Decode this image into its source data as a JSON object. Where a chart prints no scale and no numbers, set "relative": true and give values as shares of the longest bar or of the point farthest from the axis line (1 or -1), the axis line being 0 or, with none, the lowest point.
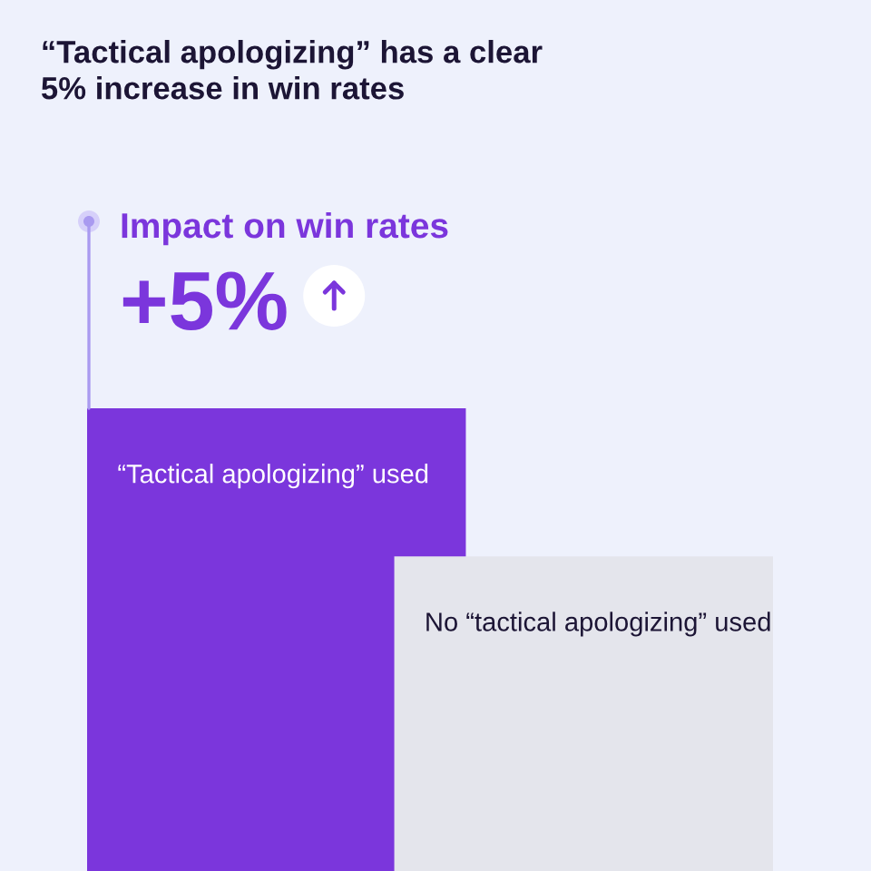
{
  "chart_data": {
    "type": "bar",
    "title": "“Tactical apologizing” has a clear 5% increase in win rates",
    "categories": [
      null
    ],
    "series": [
      {
        "name": "“Tactical apologizing” used",
        "color": "#7b36dc",
        "values": [
          1
        ]
      },
      {
        "name": "No “tactical apologizing” used",
        "color": "#e4e5ec",
        "values": [
          0.68
        ]
      }
    ],
    "relative": true,
    "annotations": [
      "Impact on win rates",
      "+5%"
    ]
  }
}
